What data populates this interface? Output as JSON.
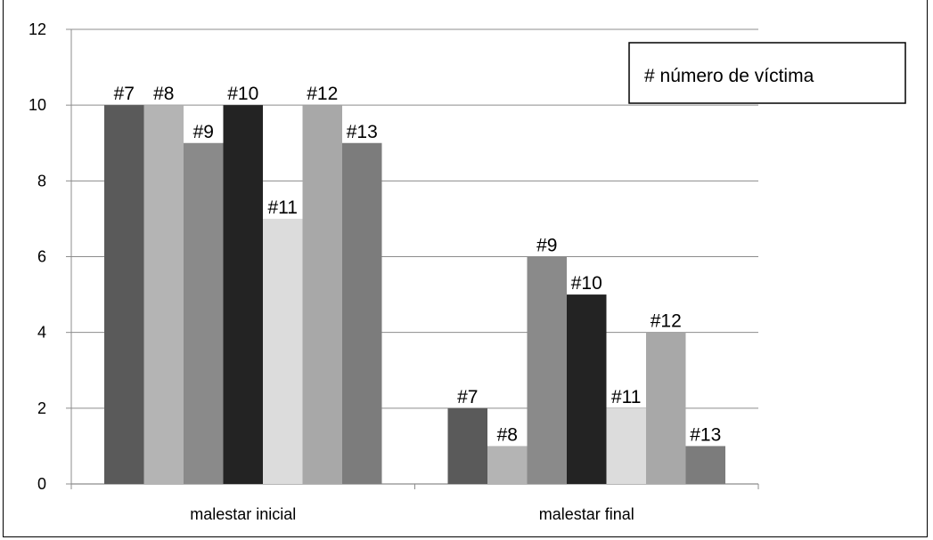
{
  "chart_data": {
    "type": "bar",
    "title": "",
    "xlabel": "",
    "ylabel": "",
    "ylim": [
      0,
      12
    ],
    "yticks": [
      0,
      2,
      4,
      6,
      8,
      10,
      12
    ],
    "grid": true,
    "legend_position": "top-right",
    "legend_text": "#  número de víctima",
    "categories": [
      "malestar inicial",
      "malestar final"
    ],
    "series": [
      {
        "label": "#7",
        "color": "#5a5a5a",
        "values": [
          10,
          2
        ]
      },
      {
        "label": "#8",
        "color": "#b4b4b4",
        "values": [
          10,
          1
        ]
      },
      {
        "label": "#9",
        "color": "#8a8a8a",
        "values": [
          9,
          6
        ]
      },
      {
        "label": "#10",
        "color": "#232323",
        "values": [
          10,
          5
        ]
      },
      {
        "label": "#11",
        "color": "#dcdcdc",
        "values": [
          7,
          2
        ]
      },
      {
        "label": "#12",
        "color": "#a8a8a8",
        "values": [
          10,
          4
        ]
      },
      {
        "label": "#13",
        "color": "#7c7c7c",
        "values": [
          9,
          1
        ]
      }
    ]
  }
}
